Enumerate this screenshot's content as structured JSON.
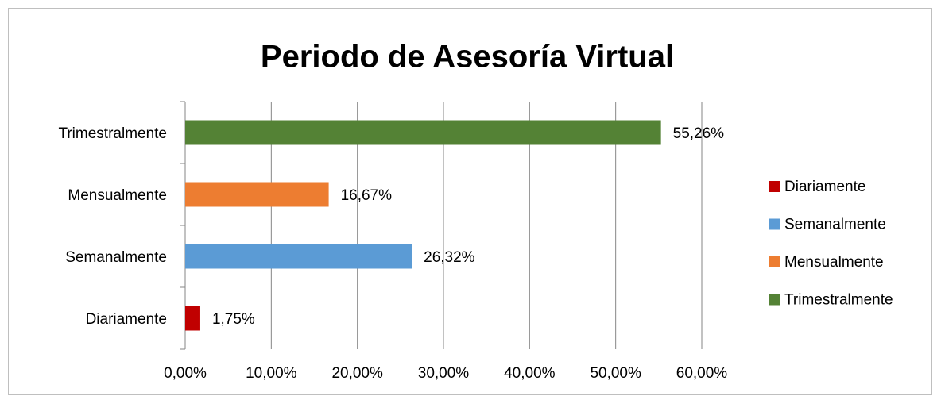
{
  "chart_data": {
    "type": "hbar",
    "title": "Periodo de Asesoría Virtual",
    "categories": [
      "Diariamente",
      "Semanalmente",
      "Mensualmente",
      "Trimestralmente"
    ],
    "values": [
      1.75,
      26.32,
      16.67,
      55.26
    ],
    "value_labels": [
      "1,75%",
      "26,32%",
      "16,67%",
      "55,26%"
    ],
    "colors": [
      "#c00000",
      "#5b9bd5",
      "#ed7d31",
      "#548235"
    ],
    "xlim": [
      0,
      60
    ],
    "xticks": [
      {
        "value": 0,
        "label": "0,00%"
      },
      {
        "value": 10,
        "label": "10,00%"
      },
      {
        "value": 20,
        "label": "20,00%"
      },
      {
        "value": 30,
        "label": "30,00%"
      },
      {
        "value": 40,
        "label": "40,00%"
      },
      {
        "value": 50,
        "label": "50,00%"
      },
      {
        "value": 60,
        "label": "60,00%"
      }
    ],
    "grid": true,
    "legend": "right"
  }
}
